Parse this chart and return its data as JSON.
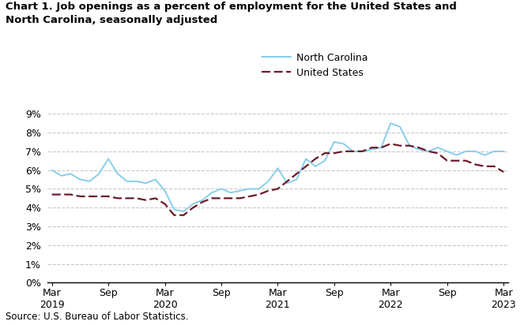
{
  "title_line1": "Chart 1. Job openings as a percent of employment for the United States and",
  "title_line2": "North Carolina, seasonally adjusted",
  "source": "Source: U.S. Bureau of Labor Statistics.",
  "nc_label": "North Carolina",
  "us_label": "United States",
  "nc_color": "#87CEEB",
  "us_color": "#6B1A2A",
  "nc_linewidth": 1.4,
  "us_linewidth": 1.6,
  "ylim": [
    0,
    9
  ],
  "yticks": [
    0,
    1,
    2,
    3,
    4,
    5,
    6,
    7,
    8,
    9
  ],
  "background_color": "#ffffff",
  "grid_color": "#c8c8c8",
  "nc_values": [
    6.0,
    5.7,
    5.8,
    5.5,
    5.4,
    5.8,
    6.6,
    5.8,
    5.4,
    5.4,
    5.3,
    5.5,
    4.9,
    3.9,
    3.8,
    4.2,
    4.4,
    4.8,
    5.0,
    4.8,
    4.9,
    5.0,
    5.0,
    5.4,
    6.1,
    5.3,
    5.5,
    6.6,
    6.2,
    6.5,
    7.5,
    7.4,
    7.0,
    7.0,
    7.1,
    7.2,
    8.5,
    8.3,
    7.3,
    7.1,
    7.0,
    7.2,
    7.0,
    6.8,
    7.0,
    7.0,
    6.8,
    7.0,
    7.0
  ],
  "us_values": [
    4.7,
    4.7,
    4.7,
    4.6,
    4.6,
    4.6,
    4.6,
    4.5,
    4.5,
    4.5,
    4.4,
    4.5,
    4.2,
    3.6,
    3.6,
    4.0,
    4.3,
    4.5,
    4.5,
    4.5,
    4.5,
    4.6,
    4.7,
    4.9,
    5.0,
    5.4,
    5.8,
    6.2,
    6.6,
    6.9,
    6.9,
    7.0,
    7.0,
    7.0,
    7.2,
    7.2,
    7.4,
    7.3,
    7.3,
    7.2,
    7.0,
    6.9,
    6.5,
    6.5,
    6.5,
    6.3,
    6.2,
    6.2,
    5.9
  ],
  "xtick_positions": [
    0,
    6,
    12,
    18,
    24,
    30,
    36,
    42,
    48
  ],
  "xtick_labels": [
    "Mar\n2019",
    "Sep",
    "Mar\n2020",
    "Sep",
    "Mar\n2021",
    "Sep",
    "Mar\n2022",
    "Sep",
    "Mar\n2023"
  ]
}
